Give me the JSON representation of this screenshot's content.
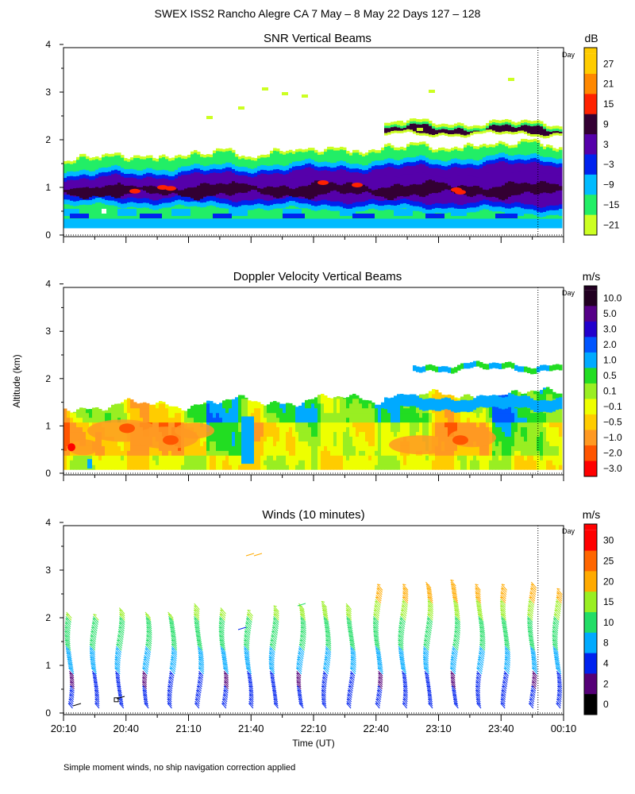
{
  "figure": {
    "title": "SWEX ISS2 Rancho Alegre CA    7 May –  8 May 22 Days 127 – 128",
    "ylabel": "Altitude (km)",
    "xlabel": "Time (UT)",
    "footnote": "Simple moment winds, no ship navigation correction applied",
    "day_marker_label": "Day",
    "x_ticks": [
      "20:10",
      "20:40",
      "21:10",
      "21:40",
      "22:10",
      "22:40",
      "23:10",
      "23:40",
      "00:10"
    ],
    "y_ticks": [
      "0",
      "1",
      "2",
      "3",
      "4"
    ]
  },
  "chart_data": [
    {
      "type": "heatmap",
      "title": "SNR Vertical Beams",
      "units": "dB",
      "xlim": [
        "20:10",
        "00:10"
      ],
      "ylim": [
        0,
        4
      ],
      "day_boundary": "00:00",
      "colorbar": {
        "labels": [
          "27",
          "21",
          "15",
          "9",
          "3",
          "−3",
          "−9",
          "−15",
          "−21"
        ],
        "colors": [
          "#ffcc00",
          "#ff8800",
          "#ff2200",
          "#330033",
          "#5500aa",
          "#0022ee",
          "#00bbff",
          "#22ee66",
          "#ccff22"
        ]
      },
      "layers_km": [
        {
          "name": "core",
          "bottom_start": 0.65,
          "bottom_end": 0.5,
          "top_start": 1.25,
          "top_end": 1.6
        },
        {
          "name": "lower band",
          "bottom": 0.15,
          "top": 0.6
        },
        {
          "name": "upper fringe",
          "bottom_start": 1.3,
          "bottom_end": 1.7,
          "top_start": 1.5,
          "top_end": 1.95
        },
        {
          "name": "elevated layer",
          "start_time": "22:40",
          "end_time": "00:05",
          "bottom": 2.15,
          "top": 2.45
        }
      ]
    },
    {
      "type": "heatmap",
      "title": "Doppler Velocity Vertical Beams",
      "units": "m/s",
      "xlim": [
        "20:10",
        "00:10"
      ],
      "ylim": [
        0,
        4
      ],
      "colorbar": {
        "labels": [
          "10.0",
          "5.0",
          "3.0",
          "2.0",
          "1.0",
          "0.5",
          "0.1",
          "−0.1",
          "−0.5",
          "−1.0",
          "−2.0",
          "−3.0"
        ],
        "colors": [
          "#220022",
          "#550088",
          "#2200cc",
          "#0055ff",
          "#00aaff",
          "#22dd22",
          "#99ee22",
          "#eeff00",
          "#ffcc00",
          "#ff9922",
          "#ff5500",
          "#ff0000"
        ]
      }
    },
    {
      "type": "scatter",
      "title": "Winds (10 minutes)",
      "units": "m/s",
      "xlim": [
        "20:10",
        "00:10"
      ],
      "ylim": [
        0,
        4
      ],
      "colorbar": {
        "labels": [
          "30",
          "25",
          "20",
          "15",
          "10",
          "8",
          "4",
          "2",
          "0"
        ],
        "colors": [
          "#ff0000",
          "#ff6600",
          "#ffaa00",
          "#99ee22",
          "#22dd66",
          "#00aaff",
          "#0022ee",
          "#550077",
          "#000000"
        ]
      },
      "profile_times": [
        "20:13",
        "20:25",
        "20:37",
        "20:50",
        "21:02",
        "21:15",
        "21:27",
        "21:39",
        "21:51",
        "22:04",
        "22:16",
        "22:28",
        "22:41",
        "22:53",
        "23:05",
        "23:18",
        "23:30",
        "23:42",
        "23:55",
        "00:07"
      ],
      "profile_tops_km": [
        2.0,
        1.95,
        2.1,
        2.0,
        2.0,
        2.2,
        2.1,
        2.05,
        2.15,
        2.2,
        2.25,
        2.2,
        2.6,
        2.6,
        2.65,
        2.7,
        2.6,
        2.6,
        2.65,
        2.5
      ]
    }
  ]
}
